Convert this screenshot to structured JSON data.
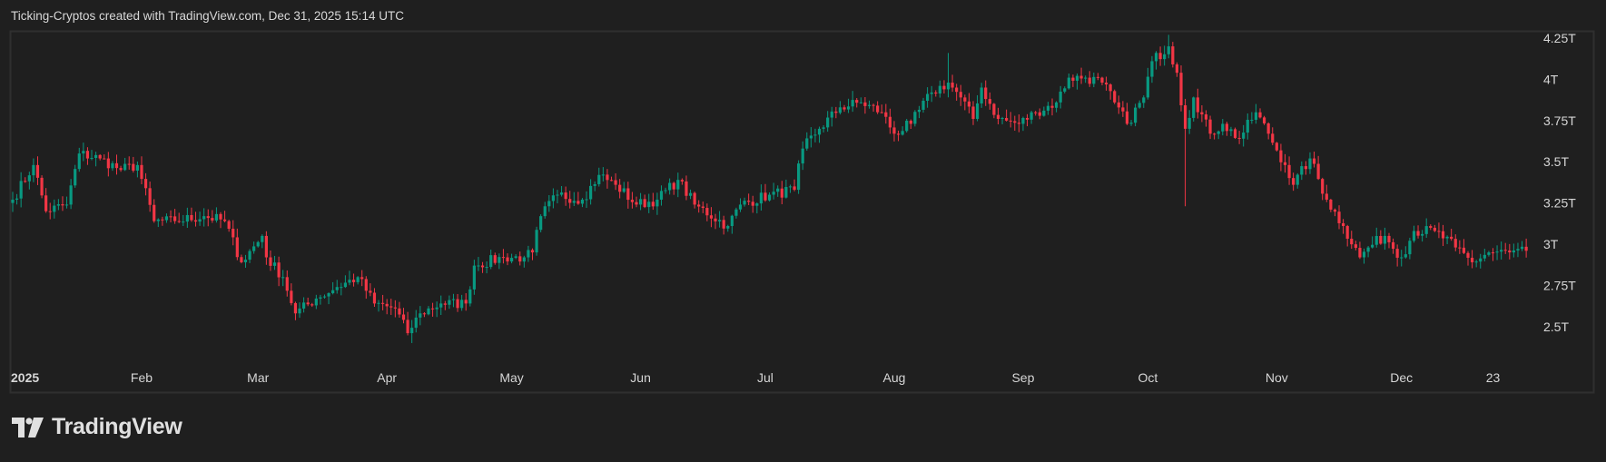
{
  "header": {
    "title": "Ticking-Cryptos created with TradingView.com, Dec 31, 2025 15:14 UTC"
  },
  "logo": {
    "text": "TradingView"
  },
  "colors": {
    "background": "#1f1f1f",
    "border": "#2f2f2f",
    "up": "#089981",
    "down": "#f23645",
    "text": "#d6d6d6"
  },
  "chart_data": {
    "type": "candlestick",
    "interval": "daily",
    "year": 2025,
    "ylim": [
      2.3,
      4.3
    ],
    "y_unit": "T",
    "y_ticks": [
      {
        "value": 4.25,
        "label": "4.25T"
      },
      {
        "value": 4.0,
        "label": "4T"
      },
      {
        "value": 3.75,
        "label": "3.75T"
      },
      {
        "value": 3.5,
        "label": "3.5T"
      },
      {
        "value": 3.25,
        "label": "3.25T"
      },
      {
        "value": 3.0,
        "label": "3T"
      },
      {
        "value": 2.75,
        "label": "2.75T"
      },
      {
        "value": 2.5,
        "label": "2.5T"
      }
    ],
    "x_ticks": [
      {
        "date": "01-01",
        "label": "2025",
        "bold": true
      },
      {
        "date": "02-01",
        "label": "Feb"
      },
      {
        "date": "03-01",
        "label": "Mar"
      },
      {
        "date": "04-01",
        "label": "Apr"
      },
      {
        "date": "05-01",
        "label": "May"
      },
      {
        "date": "06-01",
        "label": "Jun"
      },
      {
        "date": "07-01",
        "label": "Jul"
      },
      {
        "date": "08-01",
        "label": "Aug"
      },
      {
        "date": "09-01",
        "label": "Sep"
      },
      {
        "date": "10-01",
        "label": "Oct"
      },
      {
        "date": "11-01",
        "label": "Nov"
      },
      {
        "date": "12-01",
        "label": "Dec"
      },
      {
        "date": "12-23",
        "label": "23"
      }
    ],
    "grid": false,
    "close_path": [
      [
        "01-01",
        3.27
      ],
      [
        "01-06",
        3.48
      ],
      [
        "01-09",
        3.2
      ],
      [
        "01-14",
        3.24
      ],
      [
        "01-17",
        3.55
      ],
      [
        "01-22",
        3.52
      ],
      [
        "01-27",
        3.45
      ],
      [
        "01-31",
        3.48
      ],
      [
        "02-04",
        3.14
      ],
      [
        "02-09",
        3.14
      ],
      [
        "02-16",
        3.17
      ],
      [
        "02-21",
        3.14
      ],
      [
        "02-25",
        2.89
      ],
      [
        "03-02",
        3.05
      ],
      [
        "03-03",
        2.92
      ],
      [
        "03-07",
        2.8
      ],
      [
        "03-10",
        2.58
      ],
      [
        "03-15",
        2.67
      ],
      [
        "03-20",
        2.74
      ],
      [
        "03-25",
        2.8
      ],
      [
        "03-29",
        2.64
      ],
      [
        "04-03",
        2.61
      ],
      [
        "04-06",
        2.46
      ],
      [
        "04-09",
        2.58
      ],
      [
        "04-14",
        2.64
      ],
      [
        "04-20",
        2.64
      ],
      [
        "04-22",
        2.87
      ],
      [
        "04-29",
        2.92
      ],
      [
        "05-04",
        2.92
      ],
      [
        "05-06",
        2.95
      ],
      [
        "05-08",
        3.17
      ],
      [
        "05-12",
        3.3
      ],
      [
        "05-18",
        3.27
      ],
      [
        "05-22",
        3.42
      ],
      [
        "05-26",
        3.36
      ],
      [
        "05-31",
        3.24
      ],
      [
        "06-05",
        3.27
      ],
      [
        "06-10",
        3.39
      ],
      [
        "06-14",
        3.24
      ],
      [
        "06-22",
        3.11
      ],
      [
        "06-25",
        3.24
      ],
      [
        "07-02",
        3.3
      ],
      [
        "07-08",
        3.33
      ],
      [
        "07-10",
        3.58
      ],
      [
        "07-14",
        3.7
      ],
      [
        "07-19",
        3.83
      ],
      [
        "07-24",
        3.86
      ],
      [
        "07-29",
        3.8
      ],
      [
        "08-01",
        3.67
      ],
      [
        "08-05",
        3.73
      ],
      [
        "08-10",
        3.92
      ],
      [
        "08-14",
        3.98
      ],
      [
        "08-17",
        3.89
      ],
      [
        "08-20",
        3.76
      ],
      [
        "08-22",
        3.95
      ],
      [
        "08-26",
        3.76
      ],
      [
        "08-31",
        3.73
      ],
      [
        "09-04",
        3.8
      ],
      [
        "09-09",
        3.86
      ],
      [
        "09-12",
        4.01
      ],
      [
        "09-16",
        4.01
      ],
      [
        "09-20",
        3.98
      ],
      [
        "09-23",
        3.86
      ],
      [
        "09-26",
        3.73
      ],
      [
        "09-30",
        3.89
      ],
      [
        "10-02",
        4.11
      ],
      [
        "10-06",
        4.2
      ],
      [
        "10-08",
        4.04
      ],
      [
        "10-10",
        3.7
      ],
      [
        "10-12",
        3.89
      ],
      [
        "10-16",
        3.67
      ],
      [
        "10-19",
        3.73
      ],
      [
        "10-23",
        3.64
      ],
      [
        "10-27",
        3.8
      ],
      [
        "10-30",
        3.67
      ],
      [
        "11-03",
        3.48
      ],
      [
        "11-05",
        3.36
      ],
      [
        "11-09",
        3.52
      ],
      [
        "11-13",
        3.27
      ],
      [
        "11-17",
        3.11
      ],
      [
        "11-21",
        2.92
      ],
      [
        "11-23",
        2.98
      ],
      [
        "11-27",
        3.05
      ],
      [
        "12-01",
        2.92
      ],
      [
        "12-04",
        3.08
      ],
      [
        "12-09",
        3.08
      ],
      [
        "12-14",
        2.98
      ],
      [
        "12-18",
        2.89
      ],
      [
        "12-22",
        2.95
      ],
      [
        "12-27",
        2.95
      ],
      [
        "12-31",
        2.96
      ]
    ],
    "notable_extremes": [
      {
        "date": "04-07",
        "low": 2.4
      },
      {
        "date": "08-14",
        "high": 4.16
      },
      {
        "date": "10-06",
        "high": 4.27
      },
      {
        "date": "10-10",
        "low": 3.23
      }
    ]
  }
}
